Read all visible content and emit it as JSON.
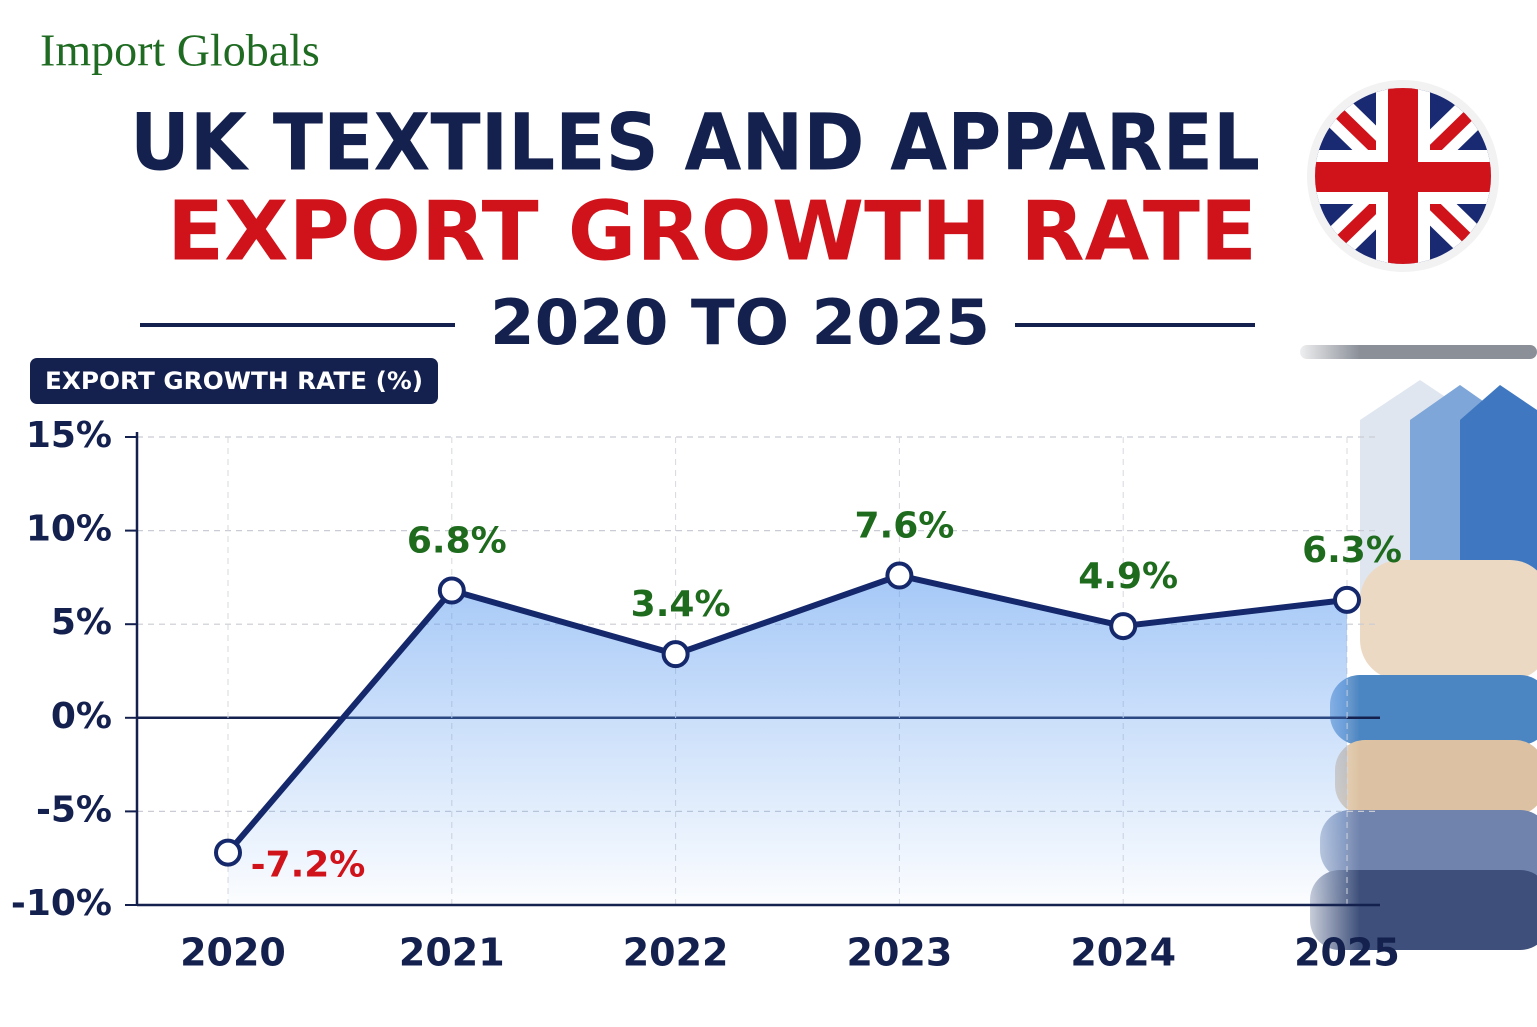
{
  "brand": "Import Globals",
  "chart_data": {
    "type": "line",
    "title": "UK TEXTILES AND APPAREL",
    "title_line2": "EXPORT GROWTH RATE",
    "subtitle": "2020 TO 2025",
    "y_label": "EXPORT GROWTH RATE (%)",
    "categories": [
      "2020",
      "2021",
      "2022",
      "2023",
      "2024",
      "2025"
    ],
    "values": [
      -7.2,
      6.8,
      3.4,
      7.6,
      4.9,
      6.3
    ],
    "value_labels": [
      "-7.2%",
      "6.8%",
      "3.4%",
      "7.6%",
      "4.9%",
      "6.3%"
    ],
    "color": "#14286b",
    "fill_color": "#5b9bf0",
    "positive_label_color": "#1e6b1e",
    "negative_label_color": "#d0121b",
    "ylim": [
      -10,
      15
    ],
    "yticks": [
      {
        "value": -10,
        "label": "-10%"
      },
      {
        "value": -5,
        "label": "-5%"
      },
      {
        "value": 0,
        "label": "0%"
      },
      {
        "value": 5,
        "label": "5%"
      },
      {
        "value": 10,
        "label": "10%"
      },
      {
        "value": 15,
        "label": "15%"
      }
    ],
    "grid": true
  }
}
